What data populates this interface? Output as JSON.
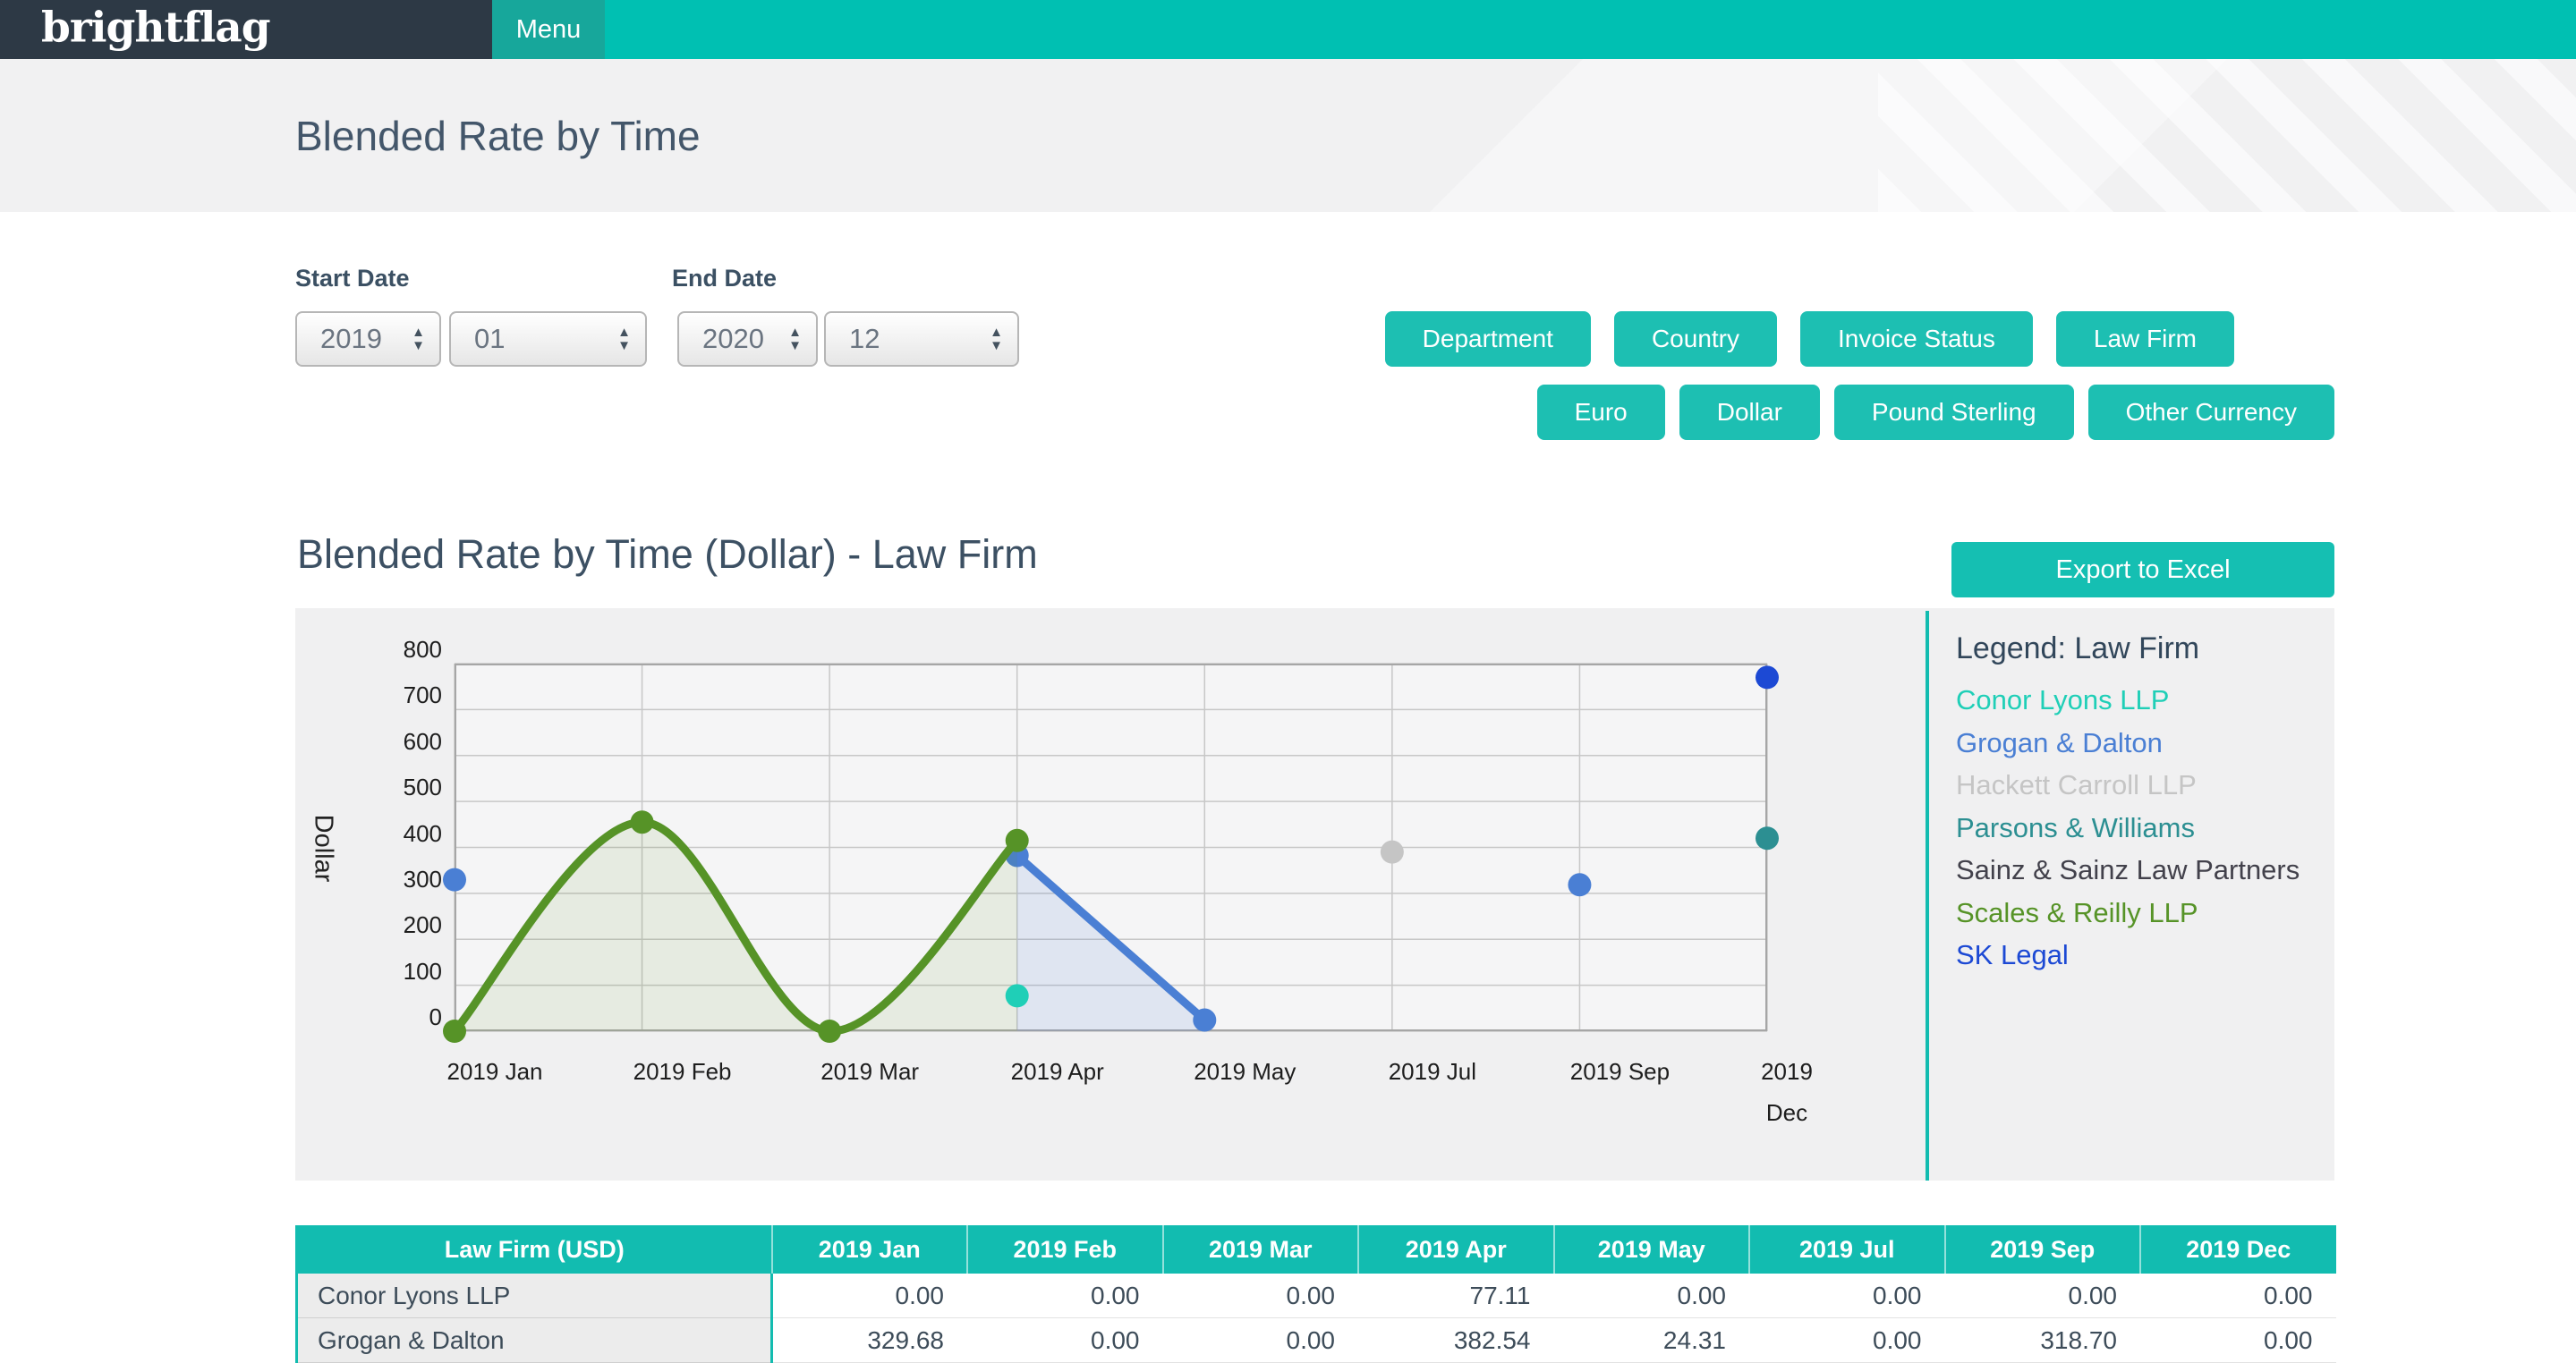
{
  "topbar": {
    "logo": "brightflag",
    "menu_label": "Menu"
  },
  "page": {
    "title": "Blended Rate by Time"
  },
  "filters": {
    "start_date_label": "Start Date",
    "end_date_label": "End Date",
    "start_year": "2019",
    "start_month": "01",
    "end_year": "2020",
    "end_month": "12",
    "dimension_buttons": [
      "Department",
      "Country",
      "Invoice Status",
      "Law Firm"
    ],
    "currency_buttons": [
      "Euro",
      "Dollar",
      "Pound Sterling",
      "Other Currency"
    ]
  },
  "section": {
    "title": "Blended Rate by Time (Dollar) - Law Firm",
    "export_label": "Export to Excel"
  },
  "chart_data": {
    "type": "line",
    "title": "Blended Rate by Time (Dollar) - Law Firm",
    "ylabel": "Dollar",
    "ylim": [
      0,
      800
    ],
    "ytick_step": 100,
    "grid": true,
    "legend_position": "right",
    "legend_title": "Legend: Law Firm",
    "categories": [
      "2019 Jan",
      "2019 Feb",
      "2019 Mar",
      "2019 Apr",
      "2019 May",
      "2019 Jul",
      "2019 Sep",
      "2019 Dec"
    ],
    "series": [
      {
        "name": "Grogan & Dalton",
        "color": "#4a7fd4",
        "fill": "rgba(74,127,212,0.13)",
        "values": [
          329.68,
          null,
          null,
          382.54,
          24.31,
          null,
          318.7,
          null
        ]
      },
      {
        "name": "Scales & Reilly LLP",
        "color": "#569327",
        "fill": "rgba(96,148,39,0.10)",
        "values": [
          0,
          455,
          0,
          415,
          null,
          null,
          null,
          null
        ]
      },
      {
        "name": "Conor Lyons LLP",
        "color": "#1fcfb7",
        "fill": null,
        "values": [
          null,
          null,
          null,
          77.11,
          null,
          null,
          null,
          null
        ]
      },
      {
        "name": "Hackett Carroll LLP",
        "color": "#c5c5c5",
        "fill": null,
        "values": [
          null,
          null,
          null,
          null,
          null,
          390,
          null,
          null
        ]
      },
      {
        "name": "Parsons & Williams",
        "color": "#2c8f92",
        "fill": null,
        "values": [
          null,
          null,
          null,
          null,
          null,
          null,
          null,
          420
        ]
      },
      {
        "name": "SK Legal",
        "color": "#1c49d4",
        "fill": null,
        "values": [
          null,
          null,
          null,
          null,
          null,
          null,
          null,
          770
        ]
      }
    ]
  },
  "legend": {
    "title": "Legend: Law Firm",
    "items": [
      {
        "label": "Conor Lyons LLP",
        "color": "#1fcfb7"
      },
      {
        "label": "Grogan & Dalton",
        "color": "#4a7fd4"
      },
      {
        "label": "Hackett Carroll LLP",
        "color": "#c5c5c5"
      },
      {
        "label": "Parsons & Williams",
        "color": "#2c8f92"
      },
      {
        "label": "Sainz & Sainz Law Partners",
        "color": "#42414b"
      },
      {
        "label": "Scales & Reilly LLP",
        "color": "#569327"
      },
      {
        "label": "SK Legal",
        "color": "#1c49d4"
      }
    ]
  },
  "table": {
    "columns": [
      "Law Firm (USD)",
      "2019 Jan",
      "2019 Feb",
      "2019 Mar",
      "2019 Apr",
      "2019 May",
      "2019 Jul",
      "2019 Sep",
      "2019 Dec"
    ],
    "rows": [
      {
        "firm": "Conor Lyons LLP",
        "values": [
          "0.00",
          "0.00",
          "0.00",
          "77.11",
          "0.00",
          "0.00",
          "0.00",
          "0.00"
        ]
      },
      {
        "firm": "Grogan & Dalton",
        "values": [
          "329.68",
          "0.00",
          "0.00",
          "382.54",
          "24.31",
          "0.00",
          "318.70",
          "0.00"
        ]
      }
    ]
  },
  "colors": {
    "brand_teal": "#00c0b2",
    "button_teal": "#1dbfb2",
    "table_header_teal": "#12bcb0",
    "topbar_dark": "#2d3945"
  }
}
